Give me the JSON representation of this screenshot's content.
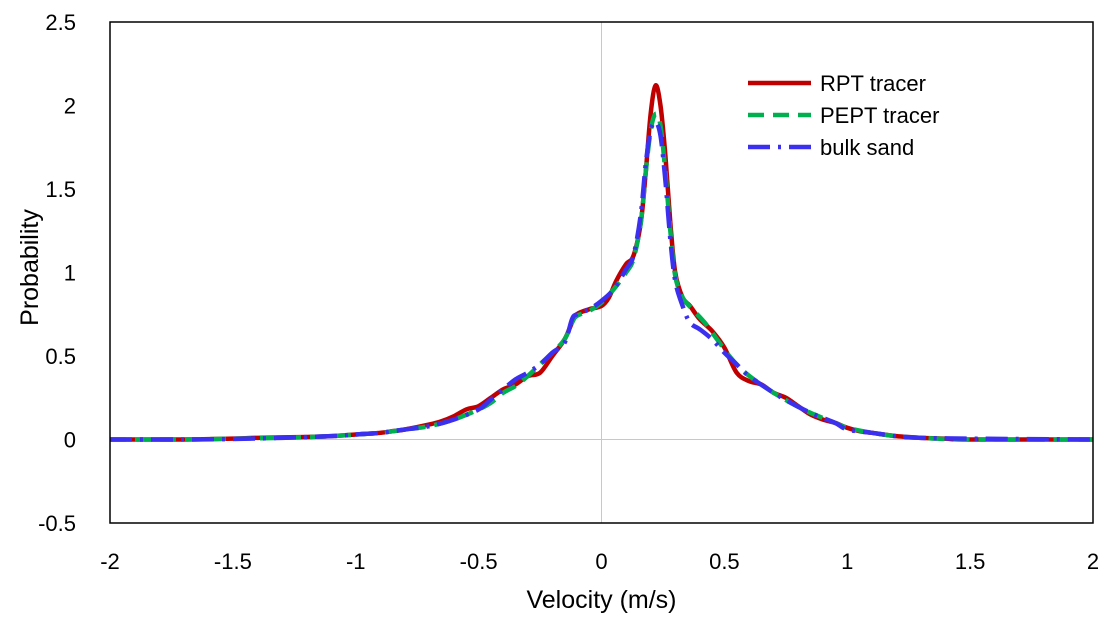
{
  "chart_data": {
    "type": "line",
    "xlabel": "Velocity (m/s)",
    "ylabel": "Probability",
    "xlim": [
      -2,
      2
    ],
    "ylim": [
      -0.5,
      2.5
    ],
    "xticks": [
      -2,
      -1.5,
      -1,
      -0.5,
      0,
      0.5,
      1,
      1.5,
      2
    ],
    "yticks": [
      -0.5,
      0,
      0.5,
      1,
      1.5,
      2,
      2.5
    ],
    "xtick_labels": [
      "-2",
      "-1.5",
      "-1",
      "-0.5",
      "0",
      "0.5",
      "1",
      "1.5",
      "2"
    ],
    "ytick_labels": [
      "-0.5",
      "0",
      "0.5",
      "1",
      "1.5",
      "2",
      "2.5"
    ],
    "grid": false,
    "zero_lines": true,
    "legend_position": "top-right",
    "series": [
      {
        "name": "RPT tracer",
        "color": "#c00000",
        "style": "solid",
        "points": [
          [
            -2,
            0
          ],
          [
            -1.7,
            0
          ],
          [
            -1.5,
            0.005
          ],
          [
            -1.4,
            0.01
          ],
          [
            -1.2,
            0.015
          ],
          [
            -1.1,
            0.02
          ],
          [
            -1.0,
            0.03
          ],
          [
            -0.9,
            0.04
          ],
          [
            -0.85,
            0.05
          ],
          [
            -0.8,
            0.06
          ],
          [
            -0.7,
            0.09
          ],
          [
            -0.65,
            0.11
          ],
          [
            -0.6,
            0.14
          ],
          [
            -0.55,
            0.18
          ],
          [
            -0.5,
            0.2
          ],
          [
            -0.45,
            0.25
          ],
          [
            -0.4,
            0.3
          ],
          [
            -0.35,
            0.33
          ],
          [
            -0.3,
            0.38
          ],
          [
            -0.25,
            0.4
          ],
          [
            -0.2,
            0.5
          ],
          [
            -0.15,
            0.6
          ],
          [
            -0.12,
            0.7
          ],
          [
            -0.1,
            0.75
          ],
          [
            -0.05,
            0.78
          ],
          [
            0,
            0.8
          ],
          [
            0.03,
            0.85
          ],
          [
            0.06,
            0.95
          ],
          [
            0.1,
            1.05
          ],
          [
            0.13,
            1.1
          ],
          [
            0.16,
            1.3
          ],
          [
            0.18,
            1.6
          ],
          [
            0.2,
            1.95
          ],
          [
            0.22,
            2.12
          ],
          [
            0.24,
            2.0
          ],
          [
            0.26,
            1.7
          ],
          [
            0.28,
            1.3
          ],
          [
            0.3,
            1.0
          ],
          [
            0.33,
            0.85
          ],
          [
            0.36,
            0.8
          ],
          [
            0.4,
            0.72
          ],
          [
            0.45,
            0.65
          ],
          [
            0.5,
            0.55
          ],
          [
            0.55,
            0.4
          ],
          [
            0.6,
            0.35
          ],
          [
            0.65,
            0.33
          ],
          [
            0.7,
            0.28
          ],
          [
            0.75,
            0.25
          ],
          [
            0.8,
            0.2
          ],
          [
            0.85,
            0.15
          ],
          [
            0.9,
            0.12
          ],
          [
            0.95,
            0.1
          ],
          [
            1.0,
            0.07
          ],
          [
            1.05,
            0.05
          ],
          [
            1.1,
            0.04
          ],
          [
            1.2,
            0.02
          ],
          [
            1.3,
            0.01
          ],
          [
            1.4,
            0.005
          ],
          [
            1.5,
            0
          ],
          [
            2,
            0
          ]
        ]
      },
      {
        "name": "PEPT tracer",
        "color": "#00b050",
        "style": "dashed",
        "points": [
          [
            -2,
            0
          ],
          [
            -1.7,
            0
          ],
          [
            -1.5,
            0.005
          ],
          [
            -1.3,
            0.01
          ],
          [
            -1.1,
            0.02
          ],
          [
            -1.0,
            0.03
          ],
          [
            -0.9,
            0.04
          ],
          [
            -0.8,
            0.06
          ],
          [
            -0.7,
            0.08
          ],
          [
            -0.6,
            0.12
          ],
          [
            -0.5,
            0.18
          ],
          [
            -0.45,
            0.22
          ],
          [
            -0.4,
            0.28
          ],
          [
            -0.35,
            0.32
          ],
          [
            -0.3,
            0.38
          ],
          [
            -0.25,
            0.45
          ],
          [
            -0.2,
            0.52
          ],
          [
            -0.15,
            0.6
          ],
          [
            -0.12,
            0.7
          ],
          [
            -0.1,
            0.74
          ],
          [
            -0.05,
            0.77
          ],
          [
            0,
            0.82
          ],
          [
            0.05,
            0.9
          ],
          [
            0.1,
            1.0
          ],
          [
            0.13,
            1.08
          ],
          [
            0.16,
            1.3
          ],
          [
            0.18,
            1.6
          ],
          [
            0.2,
            1.85
          ],
          [
            0.22,
            1.95
          ],
          [
            0.24,
            1.88
          ],
          [
            0.26,
            1.6
          ],
          [
            0.28,
            1.25
          ],
          [
            0.3,
            0.98
          ],
          [
            0.33,
            0.85
          ],
          [
            0.37,
            0.78
          ],
          [
            0.42,
            0.7
          ],
          [
            0.47,
            0.6
          ],
          [
            0.52,
            0.5
          ],
          [
            0.57,
            0.42
          ],
          [
            0.62,
            0.36
          ],
          [
            0.7,
            0.28
          ],
          [
            0.77,
            0.22
          ],
          [
            0.85,
            0.16
          ],
          [
            0.95,
            0.1
          ],
          [
            1.0,
            0.07
          ],
          [
            1.1,
            0.04
          ],
          [
            1.2,
            0.02
          ],
          [
            1.3,
            0.01
          ],
          [
            1.5,
            0
          ],
          [
            2,
            0
          ]
        ]
      },
      {
        "name": "bulk sand",
        "color": "#3b2ff0",
        "style": "dash-dot",
        "points": [
          [
            -2,
            0
          ],
          [
            -1.7,
            0
          ],
          [
            -1.5,
            0.003
          ],
          [
            -1.3,
            0.01
          ],
          [
            -1.1,
            0.02
          ],
          [
            -1.0,
            0.03
          ],
          [
            -0.9,
            0.04
          ],
          [
            -0.8,
            0.06
          ],
          [
            -0.7,
            0.08
          ],
          [
            -0.6,
            0.12
          ],
          [
            -0.5,
            0.18
          ],
          [
            -0.45,
            0.24
          ],
          [
            -0.4,
            0.3
          ],
          [
            -0.35,
            0.36
          ],
          [
            -0.3,
            0.4
          ],
          [
            -0.25,
            0.45
          ],
          [
            -0.2,
            0.52
          ],
          [
            -0.15,
            0.58
          ],
          [
            -0.12,
            0.72
          ],
          [
            -0.1,
            0.75
          ],
          [
            -0.05,
            0.78
          ],
          [
            0,
            0.83
          ],
          [
            0.05,
            0.9
          ],
          [
            0.1,
            1.02
          ],
          [
            0.13,
            1.1
          ],
          [
            0.16,
            1.35
          ],
          [
            0.18,
            1.65
          ],
          [
            0.2,
            1.85
          ],
          [
            0.22,
            1.9
          ],
          [
            0.24,
            1.82
          ],
          [
            0.26,
            1.55
          ],
          [
            0.28,
            1.2
          ],
          [
            0.3,
            0.95
          ],
          [
            0.33,
            0.8
          ],
          [
            0.36,
            0.7
          ],
          [
            0.4,
            0.66
          ],
          [
            0.45,
            0.6
          ],
          [
            0.5,
            0.52
          ],
          [
            0.55,
            0.45
          ],
          [
            0.6,
            0.38
          ],
          [
            0.7,
            0.28
          ],
          [
            0.77,
            0.22
          ],
          [
            0.85,
            0.16
          ],
          [
            0.95,
            0.1
          ],
          [
            1.0,
            0.06
          ],
          [
            1.1,
            0.04
          ],
          [
            1.2,
            0.02
          ],
          [
            1.3,
            0.01
          ],
          [
            1.5,
            0.005
          ],
          [
            2,
            0
          ]
        ]
      }
    ]
  }
}
